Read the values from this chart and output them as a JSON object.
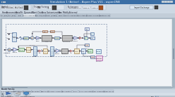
{
  "title_bar": "Simulation 1 (Active) - Aspen Plus V11 - aspenONE",
  "app_bg": "#b8c8d8",
  "title_bar_color": "#3a6ea5",
  "ribbon_bg": "#cdd8e3",
  "ribbon_group_bg": "#dce5ef",
  "tab_bar_bg": "#c2cdd8",
  "tab_active_bg": "#e8eef4",
  "tab_inactive_bg": "#bcc8d4",
  "flowsheet_outer_bg": "#b0bfcc",
  "flowsheet_canvas_bg": "#e8ecf0",
  "flowsheet_inner_bg": "#f0f3f6",
  "flowsheet_box_bg": "#f8f9fa",
  "bottom_panel_bg": "#c8d3dc",
  "bottom_tab_bg": "#cdd8e3",
  "bottom_icon_bg": "#d5dfe8",
  "statusbar_bg": "#b8c4ce",
  "block_fill": "#e0e8f0",
  "block_edge": "#6080a0",
  "hx_fill": "#c8c8c8",
  "stream_color": "#404040",
  "title": "Simulation 1 (Active) - Aspen Plus V11 - aspenONE",
  "menu_items": [
    "Home",
    "Economics",
    "Data/Fit",
    "Dynamics",
    "Plant Data",
    "View",
    "Customization",
    "Run",
    "Modify",
    "External"
  ],
  "nav_tabs": [
    "ET (Run)",
    "ET (Req)",
    "Input",
    "Main Flowsheet",
    "H2O+H2/Heat",
    "H2O (fridge)",
    "Emas",
    "Results Summary",
    "Run Status",
    "Stream Summary",
    "Systems Util"
  ],
  "active_nav_tab": "Main Flowsheet",
  "bottom_tabs": [
    "Mixed Cigellibus",
    "Separations",
    "Exchangers",
    "Converters",
    "Reactions",
    "Pressure Changers",
    "Manipulators",
    "Solids",
    "Solids Separators",
    "User SubModels",
    "User Blocks"
  ],
  "scrollbar_color": "#a8b8c4"
}
